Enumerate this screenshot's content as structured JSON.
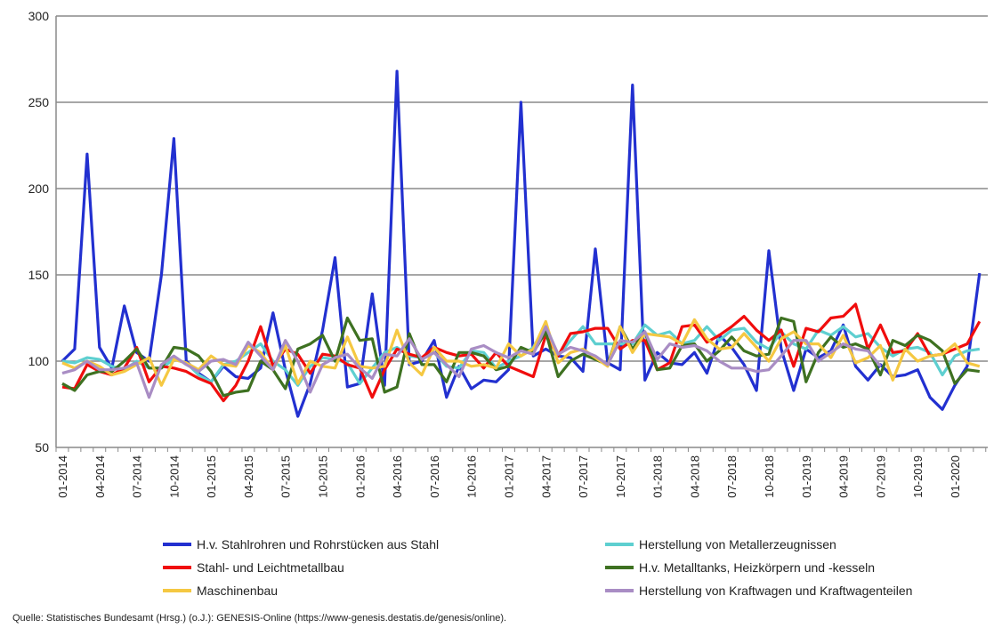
{
  "chart_data": {
    "type": "line",
    "title": "",
    "xlabel": "",
    "ylabel": "",
    "ylim": [
      50,
      300
    ],
    "yticks": [
      50,
      100,
      150,
      200,
      250,
      300
    ],
    "grid": true,
    "legend_position": "bottom",
    "x_start": "01-2014",
    "x_tick_labels": [
      "01-2014",
      "04-2014",
      "07-2014",
      "10-2014",
      "01-2015",
      "04-2015",
      "07-2015",
      "10-2015",
      "01-2016",
      "04-2016",
      "07-2016",
      "10-2016",
      "01-2017",
      "04-2017",
      "07-2017",
      "10-2017",
      "01-2018",
      "04-2018",
      "07-2018",
      "10-2018",
      "01-2019",
      "04-2019",
      "07-2019",
      "10-2019",
      "01-2020"
    ],
    "series": [
      {
        "name": "H.v. Stahlrohren und Rohrstücken aus Stahl",
        "color": "#2230d0",
        "values": [
          100,
          107,
          220,
          108,
          96,
          132,
          105,
          100,
          150,
          229,
          100,
          93,
          88,
          97,
          91,
          90,
          96,
          128,
          95,
          68,
          87,
          118,
          160,
          85,
          87,
          139,
          86,
          268,
          98,
          100,
          112,
          79,
          97,
          84,
          89,
          88,
          95,
          250,
          103,
          107,
          103,
          102,
          94,
          165,
          99,
          95,
          260,
          89,
          105,
          99,
          98,
          105,
          93,
          115,
          108,
          98,
          83,
          164,
          107,
          83,
          107,
          102,
          106,
          121,
          97,
          89,
          98,
          91,
          92,
          95,
          79,
          72,
          86,
          97,
          151
        ]
      },
      {
        "name": "Herstellung von Metallerzeugnissen",
        "color": "#5ecfd0",
        "values": [
          100,
          99,
          102,
          101,
          97,
          95,
          100,
          96,
          96,
          101,
          99,
          92,
          88,
          98,
          100,
          105,
          110,
          100,
          95,
          86,
          97,
          102,
          101,
          99,
          87,
          96,
          105,
          108,
          103,
          102,
          105,
          97,
          96,
          106,
          105,
          96,
          100,
          103,
          108,
          121,
          103,
          112,
          120,
          110,
          110,
          110,
          110,
          121,
          115,
          117,
          110,
          112,
          120,
          112,
          118,
          119,
          111,
          107,
          117,
          110,
          107,
          118,
          115,
          120,
          114,
          116,
          108,
          103,
          107,
          108,
          105,
          92,
          103,
          106,
          107
        ]
      },
      {
        "name": "Stahl- und Leichtmetallbau",
        "color": "#f00d0d",
        "values": [
          85,
          84,
          98,
          94,
          92,
          96,
          108,
          88,
          97,
          96,
          94,
          90,
          87,
          77,
          86,
          100,
          120,
          97,
          107,
          104,
          93,
          104,
          103,
          98,
          96,
          79,
          95,
          107,
          104,
          102,
          108,
          105,
          103,
          104,
          96,
          105,
          97,
          94,
          91,
          115,
          103,
          116,
          117,
          119,
          119,
          107,
          112,
          112,
          95,
          99,
          120,
          121,
          111,
          115,
          120,
          126,
          118,
          112,
          118,
          97,
          119,
          117,
          125,
          126,
          133,
          107,
          121,
          105,
          106,
          116,
          103,
          104,
          107,
          110,
          123
        ]
      },
      {
        "name": "H.v. Metalltanks, Heizkörpern und -kesseln",
        "color": "#3e7121",
        "values": [
          87,
          83,
          92,
          94,
          94,
          100,
          107,
          96,
          96,
          108,
          107,
          103,
          94,
          80,
          82,
          83,
          100,
          95,
          84,
          107,
          110,
          115,
          100,
          125,
          112,
          113,
          82,
          85,
          116,
          98,
          98,
          88,
          105,
          105,
          103,
          95,
          97,
          108,
          105,
          117,
          91,
          100,
          104,
          101,
          98,
          120,
          107,
          117,
          95,
          96,
          109,
          110,
          100,
          106,
          114,
          106,
          103,
          104,
          125,
          123,
          88,
          105,
          114,
          108,
          110,
          107,
          92,
          112,
          109,
          115,
          112,
          106,
          87,
          95,
          94
        ]
      },
      {
        "name": "Maschinenbau",
        "color": "#f5c842",
        "values": [
          99,
          96,
          100,
          97,
          92,
          94,
          98,
          102,
          86,
          101,
          99,
          95,
          103,
          98,
          97,
          109,
          105,
          95,
          109,
          87,
          100,
          97,
          96,
          114,
          97,
          96,
          97,
          118,
          99,
          92,
          108,
          100,
          100,
          97,
          98,
          96,
          110,
          103,
          107,
          123,
          99,
          105,
          107,
          102,
          97,
          120,
          105,
          116,
          115,
          114,
          110,
          124,
          113,
          107,
          108,
          116,
          108,
          100,
          113,
          117,
          110,
          110,
          102,
          115,
          99,
          102,
          109,
          89,
          107,
          100,
          103,
          104,
          110,
          99,
          97
        ]
      },
      {
        "name": "Herstellung von Kraftwagen und Kraftwagenteilen",
        "color": "#a98dc4",
        "values": [
          93,
          95,
          100,
          95,
          95,
          96,
          99,
          79,
          98,
          103,
          98,
          94,
          100,
          101,
          98,
          111,
          103,
          95,
          112,
          100,
          82,
          98,
          102,
          104,
          96,
          90,
          104,
          103,
          113,
          101,
          105,
          98,
          91,
          107,
          109,
          105,
          102,
          106,
          104,
          120,
          104,
          108,
          106,
          103,
          98,
          112,
          111,
          117,
          101,
          110,
          108,
          109,
          106,
          100,
          96,
          96,
          94,
          95,
          103,
          112,
          112,
          100,
          105,
          110,
          107,
          106,
          97,
          null,
          null,
          null,
          null,
          null,
          null,
          null,
          null
        ]
      }
    ]
  },
  "legend_order": [
    0,
    1,
    2,
    3,
    4,
    5
  ],
  "source": "Quelle: Statistisches Bundesamt (Hrsg.) (o.J.): GENESIS-Online (https://www-genesis.destatis.de/genesis/online)."
}
